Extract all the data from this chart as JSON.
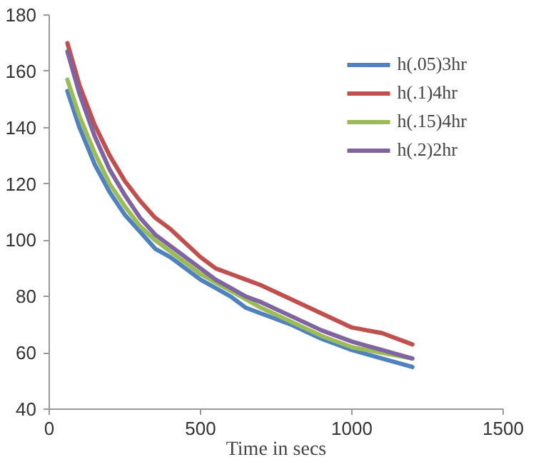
{
  "chart_data": {
    "type": "line",
    "xlabel": "Time in secs",
    "x": [
      60,
      100,
      150,
      200,
      250,
      300,
      350,
      400,
      450,
      500,
      550,
      600,
      650,
      700,
      800,
      900,
      1000,
      1100,
      1200
    ],
    "series": [
      {
        "name": "h(.05)3hr",
        "color": "#4f81bd",
        "values": [
          153,
          140,
          127,
          117,
          109,
          103,
          97,
          94,
          90,
          86,
          83,
          80,
          76,
          74,
          70,
          65,
          61,
          58,
          55
        ]
      },
      {
        "name": "h(.1)4hr",
        "color": "#c0504d",
        "values": [
          170,
          155,
          141,
          130,
          121,
          114,
          108,
          104,
          99,
          94,
          90,
          88,
          86,
          84,
          79,
          74,
          69,
          67,
          63
        ]
      },
      {
        "name": "h(.15)4hr",
        "color": "#9bbb59",
        "values": [
          157,
          144,
          131,
          120,
          112,
          105,
          100,
          96,
          92,
          88,
          85,
          82,
          79,
          76,
          71,
          66,
          62,
          60,
          58
        ]
      },
      {
        "name": "h(.2)2hr",
        "color": "#8064a2",
        "values": [
          167,
          152,
          137,
          125,
          116,
          108,
          102,
          98,
          94,
          90,
          86,
          83,
          80,
          78,
          73,
          68,
          64,
          61,
          58
        ]
      }
    ],
    "xlim": [
      0,
      1500
    ],
    "xticks": [
      0,
      500,
      1000,
      1500
    ],
    "ylim": [
      40,
      180
    ],
    "yticks": [
      40,
      60,
      80,
      100,
      120,
      140,
      160,
      180
    ],
    "grid": false,
    "legend": "top right",
    "marker": "none",
    "line_style": "solid"
  }
}
